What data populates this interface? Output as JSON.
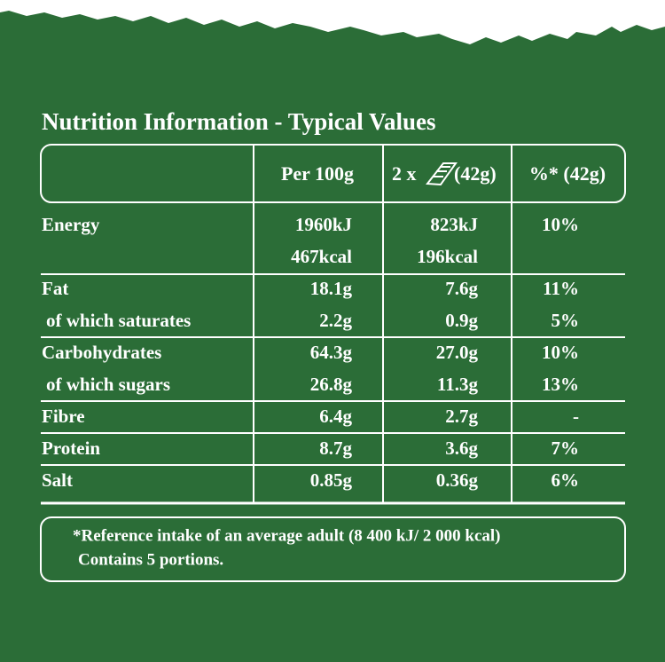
{
  "title": "Nutrition Information - Typical Values",
  "table": {
    "header": {
      "per_100g": "Per 100g",
      "serving_prefix": "2 x",
      "serving_suffix": "(42g)",
      "reference": "%* (42g)"
    },
    "rows": [
      {
        "label": "Energy",
        "per_100g": [
          "1960kJ",
          "467kcal"
        ],
        "serving": [
          "823kJ",
          "196kcal"
        ],
        "reference": "10%"
      },
      {
        "label": "Fat",
        "per_100g": [
          "18.1g"
        ],
        "serving": [
          "7.6g"
        ],
        "reference": "11%"
      },
      {
        "label": "of which saturates",
        "per_100g": [
          "2.2g"
        ],
        "serving": [
          "0.9g"
        ],
        "reference": "5%"
      },
      {
        "label": "Carbohydrates",
        "per_100g": [
          "64.3g"
        ],
        "serving": [
          "27.0g"
        ],
        "reference": "10%"
      },
      {
        "label": "of which sugars",
        "per_100g": [
          "26.8g"
        ],
        "serving": [
          "11.3g"
        ],
        "reference": "13%"
      },
      {
        "label": "Fibre",
        "per_100g": [
          "6.4g"
        ],
        "serving": [
          "2.7g"
        ],
        "reference": "-"
      },
      {
        "label": "Protein",
        "per_100g": [
          "8.7g"
        ],
        "serving": [
          "3.6g"
        ],
        "reference": "7%"
      },
      {
        "label": "Salt",
        "per_100g": [
          "0.85g"
        ],
        "serving": [
          "0.36g"
        ],
        "reference": "6%"
      }
    ]
  },
  "footnote": [
    "*Reference intake of an average adult (8 400 kJ/ 2 000 kcal)",
    "Contains 5 portions."
  ]
}
